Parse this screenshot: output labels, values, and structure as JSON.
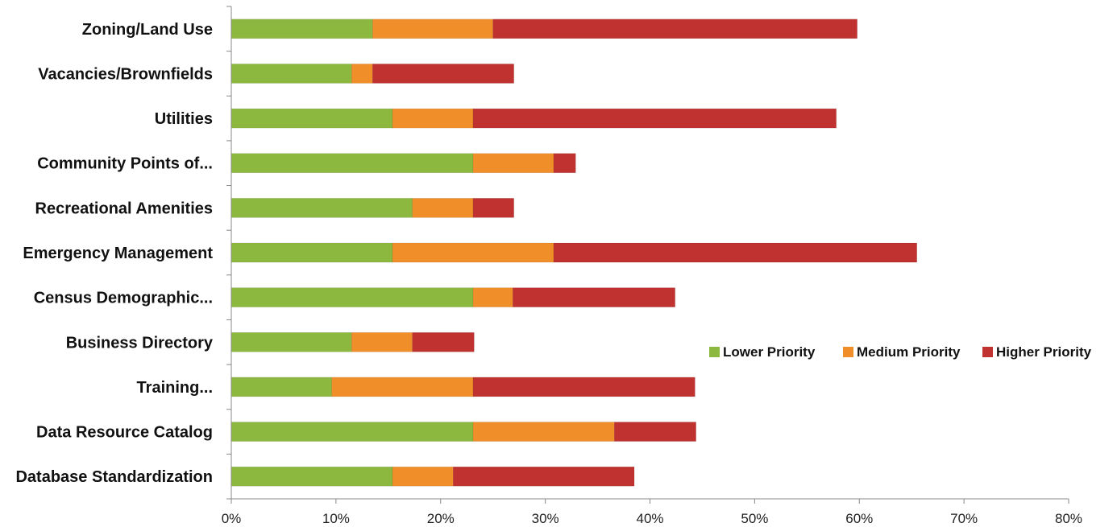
{
  "chart_data": {
    "type": "bar",
    "orientation": "horizontal",
    "stacked": true,
    "title": "",
    "xlabel": "",
    "ylabel": "",
    "xlim": [
      0,
      0.8
    ],
    "x_ticks": [
      "0%",
      "10%",
      "20%",
      "30%",
      "40%",
      "50%",
      "60%",
      "70%",
      "80%"
    ],
    "grid": false,
    "legend_position": "right",
    "categories": [
      "Zoning/Land Use",
      "Vacancies/Brownfields",
      "Utilities",
      "Community Points of...",
      "Recreational Amenities",
      "Emergency Management",
      "Census Demographic...",
      "Business Directory",
      "Training...",
      "Data Resource Catalog",
      "Database Standardization"
    ],
    "series": [
      {
        "name": "Lower Priority",
        "color": "#8DB83F",
        "values": [
          0.135,
          0.115,
          0.154,
          0.231,
          0.173,
          0.154,
          0.231,
          0.115,
          0.096,
          0.231,
          0.154
        ]
      },
      {
        "name": "Medium Priority",
        "color": "#F08E2A",
        "values": [
          0.115,
          0.02,
          0.077,
          0.077,
          0.058,
          0.154,
          0.038,
          0.058,
          0.135,
          0.135,
          0.058
        ]
      },
      {
        "name": "Higher Priority",
        "color": "#C0322F",
        "values": [
          0.348,
          0.135,
          0.347,
          0.021,
          0.039,
          0.347,
          0.155,
          0.059,
          0.212,
          0.078,
          0.173
        ]
      }
    ]
  }
}
